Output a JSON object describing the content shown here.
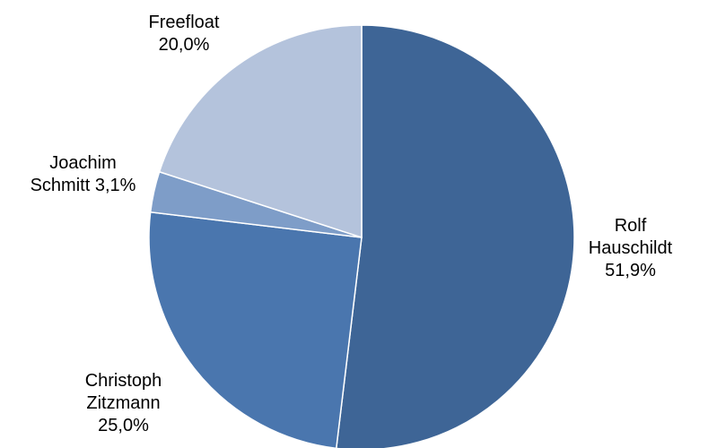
{
  "chart_data": {
    "type": "pie",
    "start_angle_deg": 0,
    "direction": "clockwise",
    "slices": [
      {
        "name": "Rolf Hauschildt",
        "value": 51.9,
        "value_label": "51,9%",
        "color": "#3e6596"
      },
      {
        "name": "Christoph Zitzmann",
        "value": 25.0,
        "value_label": "25,0%",
        "color": "#4a76ae"
      },
      {
        "name": "Joachim Schmitt",
        "value": 3.1,
        "value_label": "3,1%",
        "color": "#7e9dc8"
      },
      {
        "name": "Freefloat",
        "value": 20.0,
        "value_label": "20,0%",
        "color": "#b4c3dc"
      }
    ]
  },
  "labels": {
    "rolf": {
      "line1": "Rolf",
      "line2": "Hauschildt",
      "line3": "51,9%"
    },
    "christoph": {
      "line1": "Christoph",
      "line2": "Zitzmann",
      "line3": "25,0%"
    },
    "joachim": {
      "line1": "Joachim",
      "line2": "Schmitt 3,1%"
    },
    "freefloat": {
      "line1": "Freefloat",
      "line2": "20,0%"
    }
  }
}
